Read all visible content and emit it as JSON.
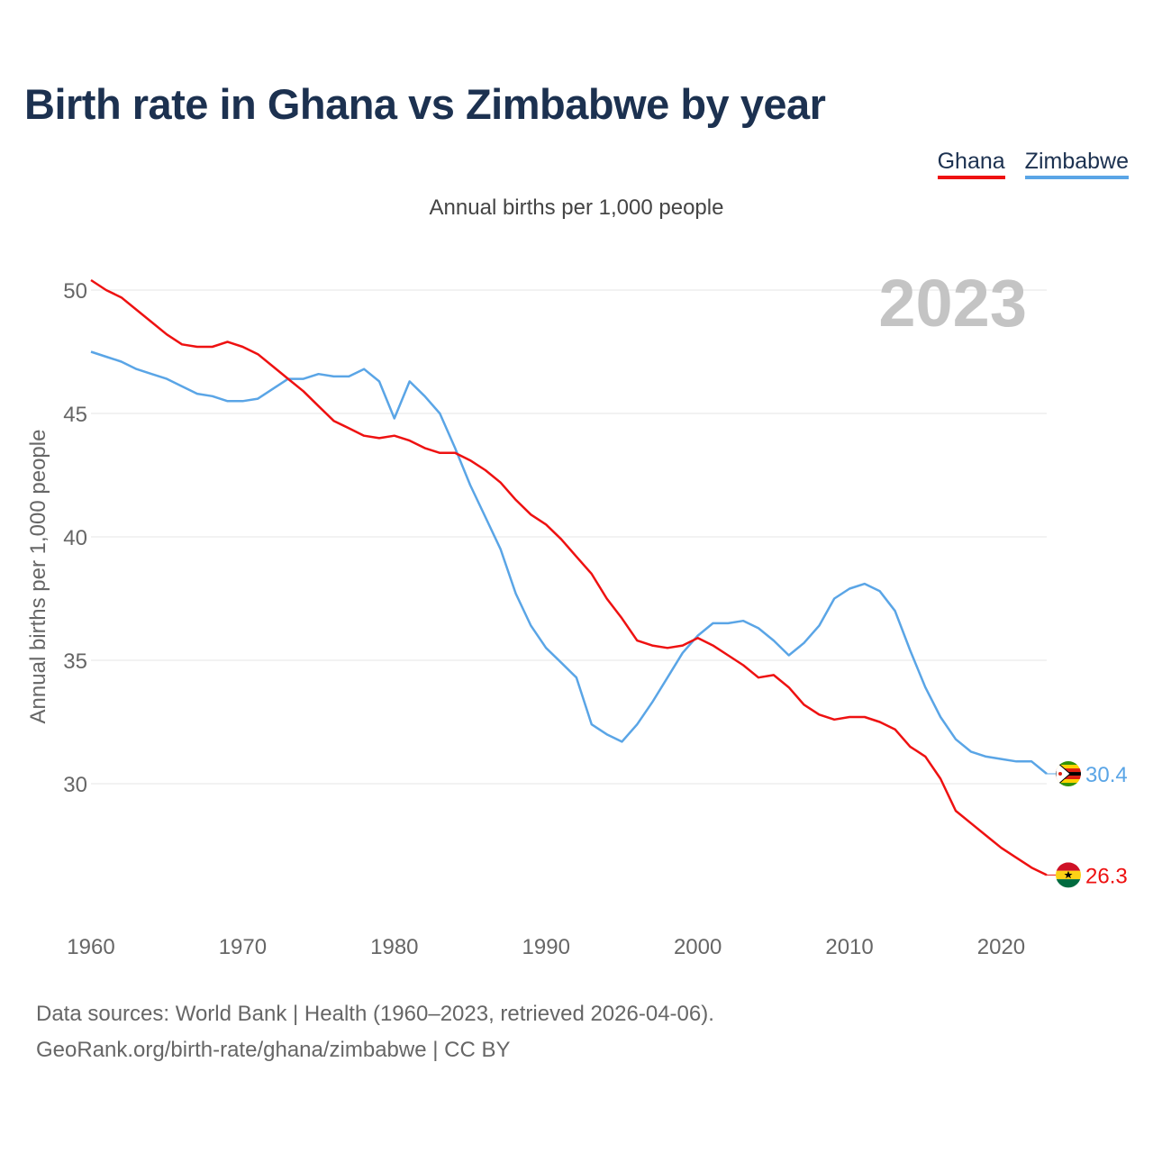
{
  "title": "Birth rate in Ghana vs Zimbabwe by year",
  "legend": {
    "ghana": "Ghana",
    "zimbabwe": "Zimbabwe"
  },
  "subtitle": "Annual births per 1,000 people",
  "year_watermark": "2023",
  "source": {
    "line1": "Data sources: World Bank | Health (1960–2023, retrieved 2026-04-06).",
    "line2": "GeoRank.org/birth-rate/ghana/zimbabwe | CC BY"
  },
  "chart_data": {
    "type": "line",
    "title": "Birth rate in Ghana vs Zimbabwe by year",
    "xlabel": "",
    "ylabel": "Annual births per 1,000 people",
    "xlim": [
      1960,
      2023
    ],
    "ylim": [
      25,
      52
    ],
    "x_ticks": [
      1960,
      1970,
      1980,
      1990,
      2000,
      2010,
      2020
    ],
    "y_ticks": [
      30,
      35,
      40,
      45,
      50
    ],
    "grid": true,
    "x": [
      1960,
      1961,
      1962,
      1963,
      1964,
      1965,
      1966,
      1967,
      1968,
      1969,
      1970,
      1971,
      1972,
      1973,
      1974,
      1975,
      1976,
      1977,
      1978,
      1979,
      1980,
      1981,
      1982,
      1983,
      1984,
      1985,
      1986,
      1987,
      1988,
      1989,
      1990,
      1991,
      1992,
      1993,
      1994,
      1995,
      1996,
      1997,
      1998,
      1999,
      2000,
      2001,
      2002,
      2003,
      2004,
      2005,
      2006,
      2007,
      2008,
      2009,
      2010,
      2011,
      2012,
      2013,
      2014,
      2015,
      2016,
      2017,
      2018,
      2019,
      2020,
      2021,
      2022,
      2023
    ],
    "series": [
      {
        "name": "Ghana",
        "color": "#ee1111",
        "end_label": "26.3",
        "values": [
          50.4,
          50.0,
          49.7,
          49.2,
          48.7,
          48.2,
          47.8,
          47.7,
          47.7,
          47.9,
          47.7,
          47.4,
          46.9,
          46.4,
          45.9,
          45.3,
          44.7,
          44.4,
          44.1,
          44.0,
          44.1,
          43.9,
          43.6,
          43.4,
          43.4,
          43.1,
          42.7,
          42.2,
          41.5,
          40.9,
          40.5,
          39.9,
          39.2,
          38.5,
          37.5,
          36.7,
          35.8,
          35.6,
          35.5,
          35.6,
          35.9,
          35.6,
          35.2,
          34.8,
          34.3,
          34.4,
          33.9,
          33.2,
          32.8,
          32.6,
          32.7,
          32.7,
          32.5,
          32.2,
          31.5,
          31.1,
          30.2,
          28.9,
          28.4,
          27.9,
          27.4,
          27.0,
          26.6,
          26.3
        ]
      },
      {
        "name": "Zimbabwe",
        "color": "#5aa5e6",
        "end_label": "30.4",
        "values": [
          47.5,
          47.3,
          47.1,
          46.8,
          46.6,
          46.4,
          46.1,
          45.8,
          45.7,
          45.5,
          45.5,
          45.6,
          46.0,
          46.4,
          46.4,
          46.6,
          46.5,
          46.5,
          46.8,
          46.3,
          44.8,
          46.3,
          45.7,
          45.0,
          43.6,
          42.1,
          40.8,
          39.5,
          37.7,
          36.4,
          35.5,
          34.9,
          34.3,
          32.4,
          32.0,
          31.7,
          32.4,
          33.3,
          34.3,
          35.3,
          36.0,
          36.5,
          36.5,
          36.6,
          36.3,
          35.8,
          35.2,
          35.7,
          36.4,
          37.5,
          37.9,
          38.1,
          37.8,
          37.0,
          35.4,
          33.9,
          32.7,
          31.8,
          31.3,
          31.1,
          31.0,
          30.9,
          30.9,
          30.4
        ]
      }
    ]
  }
}
